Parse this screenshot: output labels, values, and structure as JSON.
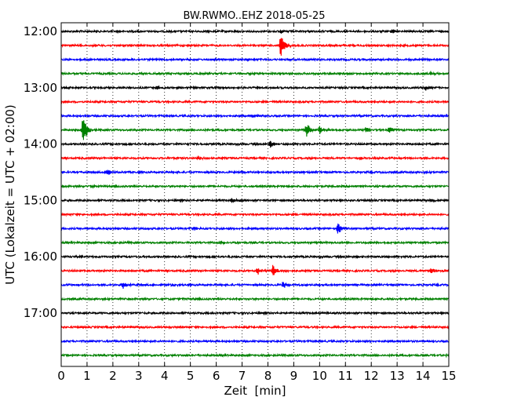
{
  "chart_data": {
    "type": "line",
    "title": "BW.RWMO..EHZ 2018-05-25",
    "xlabel": "Zeit  [min]",
    "ylabel": "UTC (Lokalzeit = UTC + 02:00)",
    "xlim": [
      0,
      15
    ],
    "x_ticks": [
      0,
      1,
      2,
      3,
      4,
      5,
      6,
      7,
      8,
      9,
      10,
      11,
      12,
      13,
      14,
      15
    ],
    "y_tick_labels": [
      "12:00",
      "13:00",
      "14:00",
      "15:00",
      "16:00",
      "17:00"
    ],
    "grid": "vertical dotted",
    "trace_colors": [
      "#000000",
      "#ff0000",
      "#0000ff",
      "#008000"
    ],
    "series": [
      {
        "start": "12:00",
        "color": "#000000",
        "events": [
          {
            "t": 8.5,
            "amp": 0.2
          },
          {
            "t": 12.8,
            "amp": 0.2
          }
        ]
      },
      {
        "start": "12:15",
        "color": "#ff0000",
        "events": [
          {
            "t": 8.5,
            "amp": 1.2
          }
        ]
      },
      {
        "start": "12:30",
        "color": "#0000ff",
        "events": []
      },
      {
        "start": "12:45",
        "color": "#008000",
        "events": [
          {
            "t": 14.3,
            "amp": 0.2
          }
        ]
      },
      {
        "start": "13:00",
        "color": "#000000",
        "events": [
          {
            "t": 3.7,
            "amp": 0.2
          },
          {
            "t": 14.1,
            "amp": 0.2
          }
        ]
      },
      {
        "start": "13:15",
        "color": "#ff0000",
        "events": []
      },
      {
        "start": "13:30",
        "color": "#0000ff",
        "events": [
          {
            "t": 7.4,
            "amp": 0.15
          }
        ]
      },
      {
        "start": "13:45",
        "color": "#008000",
        "events": [
          {
            "t": 0.85,
            "amp": 1.5
          },
          {
            "t": 9.5,
            "amp": 0.6
          },
          {
            "t": 10.0,
            "amp": 0.4
          },
          {
            "t": 11.8,
            "amp": 0.3
          },
          {
            "t": 12.7,
            "amp": 0.3
          }
        ]
      },
      {
        "start": "14:00",
        "color": "#000000",
        "events": [
          {
            "t": 8.1,
            "amp": 0.35
          }
        ]
      },
      {
        "start": "14:15",
        "color": "#ff0000",
        "events": [
          {
            "t": 5.3,
            "amp": 0.2
          }
        ]
      },
      {
        "start": "14:30",
        "color": "#0000ff",
        "events": [
          {
            "t": 1.8,
            "amp": 0.25
          },
          {
            "t": 7.0,
            "amp": 0.15
          },
          {
            "t": 9.3,
            "amp": 0.15
          }
        ]
      },
      {
        "start": "14:45",
        "color": "#008000",
        "events": [
          {
            "t": 1.2,
            "amp": 0.15
          }
        ]
      },
      {
        "start": "15:00",
        "color": "#000000",
        "events": [
          {
            "t": 6.6,
            "amp": 0.2
          },
          {
            "t": 14.3,
            "amp": 0.15
          }
        ]
      },
      {
        "start": "15:15",
        "color": "#ff0000",
        "events": []
      },
      {
        "start": "15:30",
        "color": "#0000ff",
        "events": [
          {
            "t": 5.1,
            "amp": 0.25
          },
          {
            "t": 10.7,
            "amp": 0.55
          }
        ]
      },
      {
        "start": "15:45",
        "color": "#008000",
        "events": [
          {
            "t": 6.2,
            "amp": 0.15
          }
        ]
      },
      {
        "start": "16:00",
        "color": "#000000",
        "events": []
      },
      {
        "start": "16:15",
        "color": "#ff0000",
        "events": [
          {
            "t": 7.6,
            "amp": 0.35
          },
          {
            "t": 8.2,
            "amp": 0.6
          },
          {
            "t": 14.3,
            "amp": 0.35
          }
        ]
      },
      {
        "start": "16:30",
        "color": "#0000ff",
        "events": [
          {
            "t": 2.4,
            "amp": 0.3
          },
          {
            "t": 4.3,
            "amp": 0.15
          },
          {
            "t": 8.6,
            "amp": 0.35
          }
        ]
      },
      {
        "start": "16:45",
        "color": "#008000",
        "events": []
      },
      {
        "start": "17:00",
        "color": "#000000",
        "events": []
      },
      {
        "start": "17:15",
        "color": "#ff0000",
        "events": []
      },
      {
        "start": "17:30",
        "color": "#0000ff",
        "events": []
      },
      {
        "start": "17:45",
        "color": "#008000",
        "events": [
          {
            "t": 14.9,
            "amp": 0.15
          }
        ]
      }
    ]
  }
}
